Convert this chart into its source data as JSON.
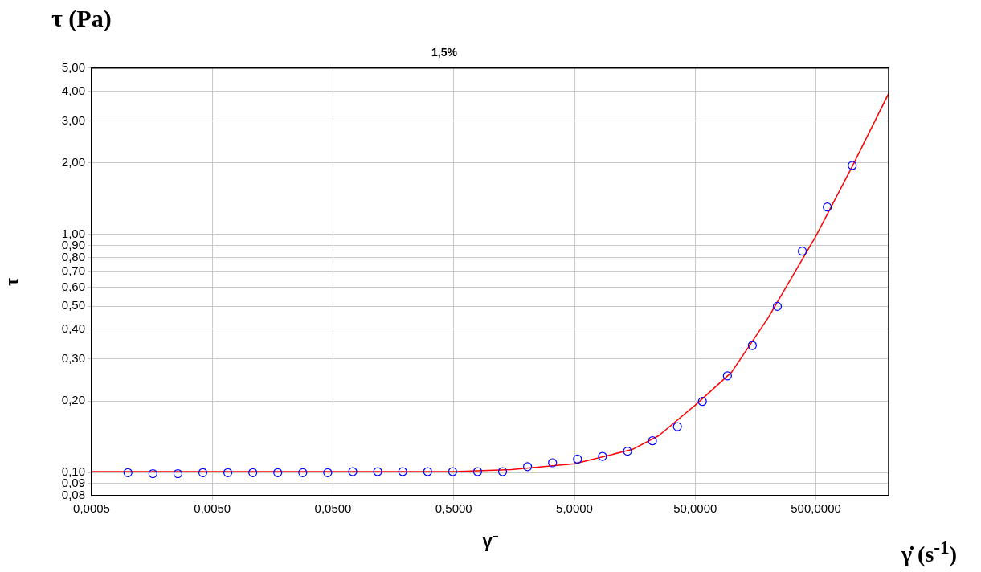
{
  "chart_data": {
    "type": "scatter",
    "title": "1,5%",
    "xlabel": "γ⁻",
    "ylabel": "τ",
    "annotations": [
      "τ (Pa)",
      "γ̇ (s$^{-1}$)"
    ],
    "log": "xy",
    "grid": true,
    "xlim": [
      0.0005,
      2000
    ],
    "ylim": [
      0.08,
      5
    ],
    "xticks": [
      {
        "value": 0.0005,
        "label": "0,0005"
      },
      {
        "value": 0.005,
        "label": "0,0050"
      },
      {
        "value": 0.05,
        "label": "0,0500"
      },
      {
        "value": 0.5,
        "label": "0,5000"
      },
      {
        "value": 5,
        "label": "5,0000"
      },
      {
        "value": 50,
        "label": "50,0000"
      },
      {
        "value": 500,
        "label": "500,0000"
      }
    ],
    "yticks": [
      {
        "value": 0.08,
        "label": "0,08"
      },
      {
        "value": 0.09,
        "label": "0,09"
      },
      {
        "value": 0.1,
        "label": "0,10"
      },
      {
        "value": 0.2,
        "label": "0,20"
      },
      {
        "value": 0.3,
        "label": "0,30"
      },
      {
        "value": 0.4,
        "label": "0,40"
      },
      {
        "value": 0.5,
        "label": "0,50"
      },
      {
        "value": 0.6,
        "label": "0,60"
      },
      {
        "value": 0.7,
        "label": "0,70"
      },
      {
        "value": 0.8,
        "label": "0,80"
      },
      {
        "value": 0.9,
        "label": "0,90"
      },
      {
        "value": 1,
        "label": "1,00"
      },
      {
        "value": 2,
        "label": "2,00"
      },
      {
        "value": 3,
        "label": "3,00"
      },
      {
        "value": 4,
        "label": "4,00"
      },
      {
        "value": 5,
        "label": "5,00"
      }
    ],
    "series": [
      {
        "color": "#0000ff",
        "marker": "circle",
        "x": [
          0.001,
          0.00161,
          0.002593,
          0.004175,
          0.006723,
          0.01083,
          0.01743,
          0.02807,
          0.0452,
          0.07279,
          0.1172,
          0.1887,
          0.3039,
          0.4894,
          0.788,
          1.269,
          2.043,
          3.29,
          5.298,
          8.532,
          13.74,
          22.12,
          35.62,
          57.36,
          92.36,
          148.7,
          239.5,
          385.6,
          621,
          1000
        ],
        "values": [
          0.1,
          0.099,
          0.099,
          0.1,
          0.1,
          0.1,
          0.1,
          0.1,
          0.1,
          0.101,
          0.101,
          0.101,
          0.101,
          0.101,
          0.101,
          0.101,
          0.106,
          0.11,
          0.114,
          0.117,
          0.123,
          0.136,
          0.156,
          0.199,
          0.255,
          0.342,
          0.499,
          0.851,
          1.305,
          1.951
        ]
      },
      {
        "type": "line",
        "color": "#ff0000",
        "marker": "none",
        "line_style": "solid",
        "x": [
          0.0005,
          0.5,
          1.5,
          5,
          15,
          25,
          50,
          100,
          200,
          500,
          1000,
          2000
        ],
        "values": [
          0.101,
          0.101,
          0.103,
          0.109,
          0.125,
          0.143,
          0.192,
          0.264,
          0.445,
          0.985,
          1.934,
          3.91
        ]
      }
    ]
  }
}
